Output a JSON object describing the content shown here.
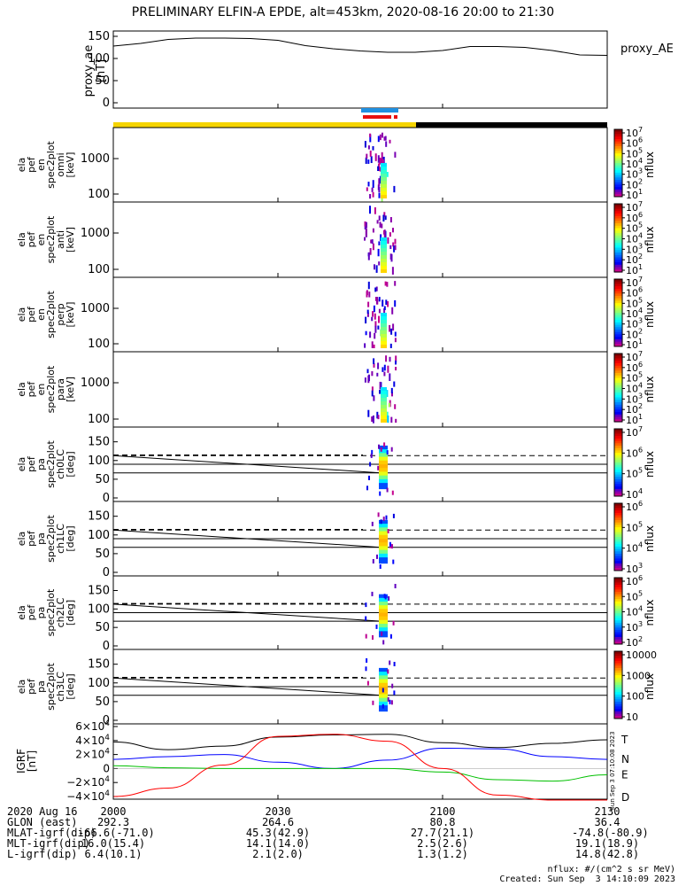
{
  "title": "PRELIMINARY ELFIN-A EPDE, alt=453km, 2020-08-16 20:00 to 21:30",
  "chart_data": [
    {
      "type": "line",
      "name": "proxy_ae",
      "ylabel": "proxy_ae [nT]",
      "legend": "proxy_AE",
      "ylim": [
        0,
        150
      ],
      "yticks": [
        "150",
        "100",
        "50",
        "0"
      ],
      "x_minutes": [
        0,
        5,
        10,
        15,
        20,
        25,
        30,
        35,
        40,
        45,
        50,
        55,
        60,
        65,
        70,
        75,
        80,
        85,
        90
      ],
      "values": [
        128,
        134,
        143,
        146,
        146,
        145,
        141,
        129,
        122,
        117,
        114,
        114,
        118,
        127,
        127,
        125,
        118,
        108,
        107
      ]
    },
    {
      "type": "heatmap",
      "ylabel": "ela pef en spec2plot omni [keV]",
      "yticks": [
        "1000",
        "100"
      ],
      "scale": "log",
      "colorbar": {
        "label": "nflux",
        "ticks": [
          "10^7",
          "10^6",
          "10^5",
          "10^4",
          "10^3",
          "10^2",
          "10^1"
        ]
      }
    },
    {
      "type": "heatmap",
      "ylabel": "ela pef en spec2plot anti [keV]",
      "yticks": [
        "1000",
        "100"
      ],
      "scale": "log",
      "colorbar": {
        "label": "nflux",
        "ticks": [
          "10^7",
          "10^6",
          "10^5",
          "10^4",
          "10^3",
          "10^2",
          "10^1"
        ]
      }
    },
    {
      "type": "heatmap",
      "ylabel": "ela pef en spec2plot perp [keV]",
      "yticks": [
        "1000",
        "100"
      ],
      "scale": "log",
      "colorbar": {
        "label": "nflux",
        "ticks": [
          "10^7",
          "10^6",
          "10^5",
          "10^4",
          "10^3",
          "10^2",
          "10^1"
        ]
      }
    },
    {
      "type": "heatmap",
      "ylabel": "ela pef en spec2plot para [keV]",
      "yticks": [
        "1000",
        "100"
      ],
      "scale": "log",
      "colorbar": {
        "label": "nflux",
        "ticks": [
          "10^7",
          "10^6",
          "10^5",
          "10^4",
          "10^3",
          "10^2",
          "10^1"
        ]
      }
    },
    {
      "type": "heatmap",
      "ylabel": "ela pef pa spec2plot ch0LC [deg]",
      "yticks": [
        "150",
        "100",
        "50",
        "0"
      ],
      "colorbar": {
        "label": "nflux",
        "ticks": [
          "10^7",
          "10^6",
          "10^5",
          "10^4"
        ]
      }
    },
    {
      "type": "heatmap",
      "ylabel": "ela pef pa spec2plot ch1LC [deg]",
      "yticks": [
        "150",
        "100",
        "50",
        "0"
      ],
      "colorbar": {
        "label": "nflux",
        "ticks": [
          "10^6",
          "10^5",
          "10^4",
          "10^3"
        ]
      }
    },
    {
      "type": "heatmap",
      "ylabel": "ela pef pa spec2plot ch2LC [deg]",
      "yticks": [
        "150",
        "100",
        "50",
        "0"
      ],
      "colorbar": {
        "label": "nflux",
        "ticks": [
          "10^6",
          "10^5",
          "10^4",
          "10^3",
          "10^2"
        ]
      }
    },
    {
      "type": "heatmap",
      "ylabel": "ela pef pa spec2plot ch3LC [deg]",
      "yticks": [
        "150",
        "100",
        "50",
        "0"
      ],
      "colorbar": {
        "label": "nflux",
        "ticks": [
          "10000",
          "1000",
          "100",
          "10"
        ]
      }
    },
    {
      "type": "line",
      "ylabel": "IGRF [nT]",
      "yticks": [
        "6×10^4",
        "4×10^4",
        "2×10^4",
        "0",
        "−2×10^4",
        "−4×10^4"
      ],
      "ylim": [
        -40000,
        60000
      ],
      "x_minutes": [
        0,
        10,
        20,
        30,
        40,
        50,
        60,
        70,
        80,
        90
      ],
      "series": [
        {
          "name": "T",
          "color": "#000000",
          "values": [
            38000,
            27000,
            32000,
            45000,
            48000,
            49000,
            37000,
            30000,
            36000,
            41000
          ]
        },
        {
          "name": "N",
          "color": "#0000ff",
          "values": [
            13000,
            17000,
            20000,
            9000,
            0,
            12000,
            29000,
            28000,
            17000,
            13000
          ]
        },
        {
          "name": "E",
          "color": "#00c000",
          "values": [
            4000,
            1000,
            0,
            0,
            0,
            0,
            -5000,
            -16000,
            -18000,
            -9000
          ]
        },
        {
          "name": "D",
          "color": "#ff0000",
          "values": [
            -40000,
            -28000,
            5000,
            46000,
            49000,
            39000,
            0,
            -38000,
            -45000,
            -45000
          ]
        }
      ]
    }
  ],
  "xaxis": {
    "tick_labels": [
      "2000",
      "2030",
      "2100",
      "2130"
    ],
    "rows": [
      {
        "label": "2020 Aug 16",
        "values": [
          "2000",
          "2030",
          "2100",
          "2130"
        ]
      },
      {
        "label": "GLON (east)",
        "values": [
          "292.3",
          "264.6",
          "80.8",
          "36.4"
        ]
      },
      {
        "label": "MLAT-igrf(dip)",
        "values": [
          "-66.6(-71.0)",
          "45.3(42.9)",
          "27.7(21.1)",
          "-74.8(-80.9)"
        ]
      },
      {
        "label": "MLT-igrf(dip)",
        "values": [
          "16.0(15.4)",
          "14.1(14.0)",
          "2.5(2.6)",
          "19.1(18.9)"
        ]
      },
      {
        "label": "L-igrf(dip)",
        "values": [
          "6.4(10.1)",
          "2.1(2.0)",
          "1.3(1.2)",
          "14.8(42.8)"
        ]
      }
    ]
  },
  "footer": {
    "units": "nflux: #/(cm^2 s sr MeV)",
    "created": "Created: Sun Sep  3 14:10:09 2023",
    "side": "Sun Sep  3 07:10:08 2023"
  },
  "colors": {
    "sunlit": "#f5d400",
    "eclipse": "#000000",
    "science_bar": "#2090e0",
    "fgm_bar": "#e81010"
  }
}
